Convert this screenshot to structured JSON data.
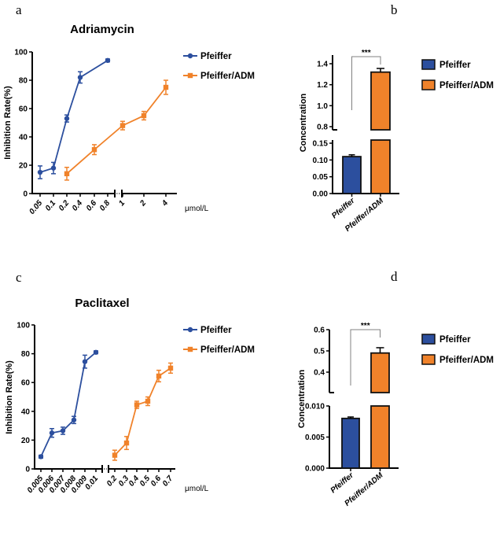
{
  "colors": {
    "pfeiffer": "#2c4f9e",
    "pfeiffer_adm": "#f0822a",
    "axis": "#000000",
    "bracket": "#808080"
  },
  "chart_data": [
    {
      "panel": "a",
      "type": "line",
      "title": "Adriamycin",
      "ylabel": "Inhibition Rate(%)",
      "xlabel": "μmol/L",
      "ylim": [
        0,
        100
      ],
      "yticks": [
        "0",
        "20",
        "40",
        "60",
        "80",
        "100"
      ],
      "xticks": [
        "0.05",
        "0.1",
        "0.2",
        "0.4",
        "0.6",
        "0.8",
        "1",
        "2",
        "4"
      ],
      "x_axis_break": "between 0.8 and 1",
      "legend_placement": "right",
      "series": [
        {
          "name": "Pfeiffer",
          "marker": "circle",
          "color": "#2c4f9e",
          "x": [
            "0.05",
            "0.1",
            "0.2",
            "0.4",
            "0.8"
          ],
          "y": [
            15,
            18,
            53,
            82,
            94
          ],
          "err": [
            4.5,
            4,
            2.5,
            4,
            1
          ]
        },
        {
          "name": "Pfeiffer/ADM",
          "marker": "square",
          "color": "#f0822a",
          "x": [
            "0.2",
            "0.6",
            "1",
            "2",
            "4"
          ],
          "y": [
            14,
            31,
            48,
            55,
            75
          ],
          "err": [
            4.5,
            3.5,
            3,
            3,
            5
          ]
        }
      ]
    },
    {
      "panel": "b",
      "type": "bar",
      "ylabel": "Concentration",
      "categories": [
        "Pfeiffer",
        "Pfeiffer/ADM"
      ],
      "values": [
        0.11,
        1.32
      ],
      "err": [
        0.003,
        0.035
      ],
      "y_axis_break": {
        "lower": [
          0,
          0.15
        ],
        "upper": [
          0.75,
          1.45
        ]
      },
      "yticks_lower": [
        "0.00",
        "0.05",
        "0.10",
        "0.15"
      ],
      "yticks_upper": [
        "0.8",
        "1.0",
        "1.2",
        "1.4"
      ],
      "significance": "***",
      "legend": [
        "Pfeiffer",
        "Pfeiffer/ADM"
      ],
      "legend_placement": "right"
    },
    {
      "panel": "c",
      "type": "line",
      "title": "Paclitaxel",
      "ylabel": "Inhibition Rate(%)",
      "xlabel": "μmol/L",
      "ylim": [
        0,
        100
      ],
      "yticks": [
        "0",
        "20",
        "40",
        "60",
        "80",
        "100"
      ],
      "xticks": [
        "0.005",
        "0.006",
        "0.007",
        "0.008",
        "0.009",
        "0.01",
        "0.2",
        "0.3",
        "0.4",
        "0.5",
        "0.6",
        "0.7"
      ],
      "x_axis_break": "between 0.01 and 0.2",
      "legend_placement": "right",
      "series": [
        {
          "name": "Pfeiffer",
          "marker": "circle",
          "color": "#2c4f9e",
          "x": [
            "0.005",
            "0.006",
            "0.007",
            "0.008",
            "0.009",
            "0.01"
          ],
          "y": [
            8.5,
            25,
            26.5,
            34,
            74.5,
            81
          ],
          "err": [
            1,
            3,
            2.5,
            2.5,
            4.5,
            1
          ]
        },
        {
          "name": "Pfeiffer/ADM",
          "marker": "square",
          "color": "#f0822a",
          "x": [
            "0.2",
            "0.3",
            "0.4",
            "0.5",
            "0.6",
            "0.7"
          ],
          "y": [
            9.5,
            18,
            44.5,
            47,
            64.5,
            70
          ],
          "err": [
            3.5,
            4.5,
            2.5,
            3,
            4,
            3.5
          ]
        }
      ]
    },
    {
      "panel": "d",
      "type": "bar",
      "ylabel": "Concentration",
      "categories": [
        "Pfeiffer",
        "Pfeiffer/ADM"
      ],
      "values": [
        0.008,
        0.49
      ],
      "err": [
        0.0001,
        0.025
      ],
      "y_axis_break": {
        "lower": [
          0,
          0.01
        ],
        "upper": [
          0.3,
          0.6
        ]
      },
      "yticks_lower": [
        "0.000",
        "0.005",
        "0.010"
      ],
      "yticks_upper": [
        "0.4",
        "0.5",
        "0.6"
      ],
      "significance": "***",
      "legend": [
        "Pfeiffer",
        "Pfeiffer/ADM"
      ],
      "legend_placement": "right"
    }
  ]
}
